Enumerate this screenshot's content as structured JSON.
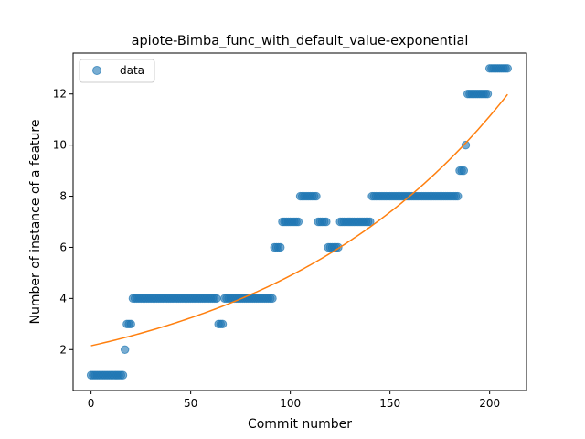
{
  "chart_data": {
    "type": "scatter",
    "title": "apiote-Bimba_func_with_default_value-exponential",
    "xlabel": "Commit number",
    "ylabel": "Number of instance of a feature",
    "xlim": [
      -9,
      218.5
    ],
    "ylim": [
      0.4,
      13.6
    ],
    "xticks": [
      0,
      50,
      100,
      150,
      200
    ],
    "yticks": [
      2,
      4,
      6,
      8,
      10,
      12
    ],
    "grid": false,
    "legend": {
      "position": "top-left",
      "entries": [
        "data"
      ]
    },
    "colors": {
      "data": "#1f77b4",
      "fit": "#ff7f0e"
    },
    "series": [
      {
        "name": "data",
        "kind": "scatter",
        "segments": [
          {
            "x_from": 0,
            "x_to": 16,
            "y": 1
          },
          {
            "x_from": 17,
            "x_to": 17,
            "y": 2
          },
          {
            "x_from": 18,
            "x_to": 20,
            "y": 3
          },
          {
            "x_from": 21,
            "x_to": 63,
            "y": 4
          },
          {
            "x_from": 64,
            "x_to": 66,
            "y": 3
          },
          {
            "x_from": 67,
            "x_to": 91,
            "y": 4
          },
          {
            "x_from": 92,
            "x_to": 95,
            "y": 6
          },
          {
            "x_from": 96,
            "x_to": 104,
            "y": 7
          },
          {
            "x_from": 105,
            "x_to": 113,
            "y": 8
          },
          {
            "x_from": 114,
            "x_to": 118,
            "y": 7
          },
          {
            "x_from": 119,
            "x_to": 124,
            "y": 6
          },
          {
            "x_from": 125,
            "x_to": 140,
            "y": 7
          },
          {
            "x_from": 141,
            "x_to": 184,
            "y": 8
          },
          {
            "x_from": 185,
            "x_to": 187,
            "y": 9
          },
          {
            "x_from": 188,
            "x_to": 188,
            "y": 10
          },
          {
            "x_from": 189,
            "x_to": 199,
            "y": 12
          },
          {
            "x_from": 200,
            "x_to": 209,
            "y": 13
          }
        ]
      },
      {
        "kind": "line",
        "model": "exponential",
        "a": 2.15,
        "b": 0.00822,
        "x_range": [
          0,
          209
        ]
      }
    ]
  }
}
